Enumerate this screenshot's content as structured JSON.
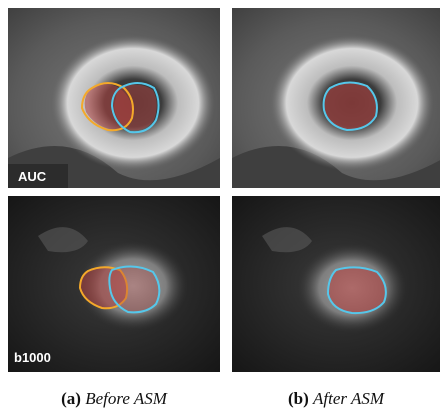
{
  "rows": [
    {
      "label": "AUC"
    },
    {
      "label": "b1000"
    }
  ],
  "captions": [
    {
      "tag": "(a)",
      "text": "Before ASM"
    },
    {
      "tag": "(b)",
      "text": "After ASM"
    }
  ]
}
